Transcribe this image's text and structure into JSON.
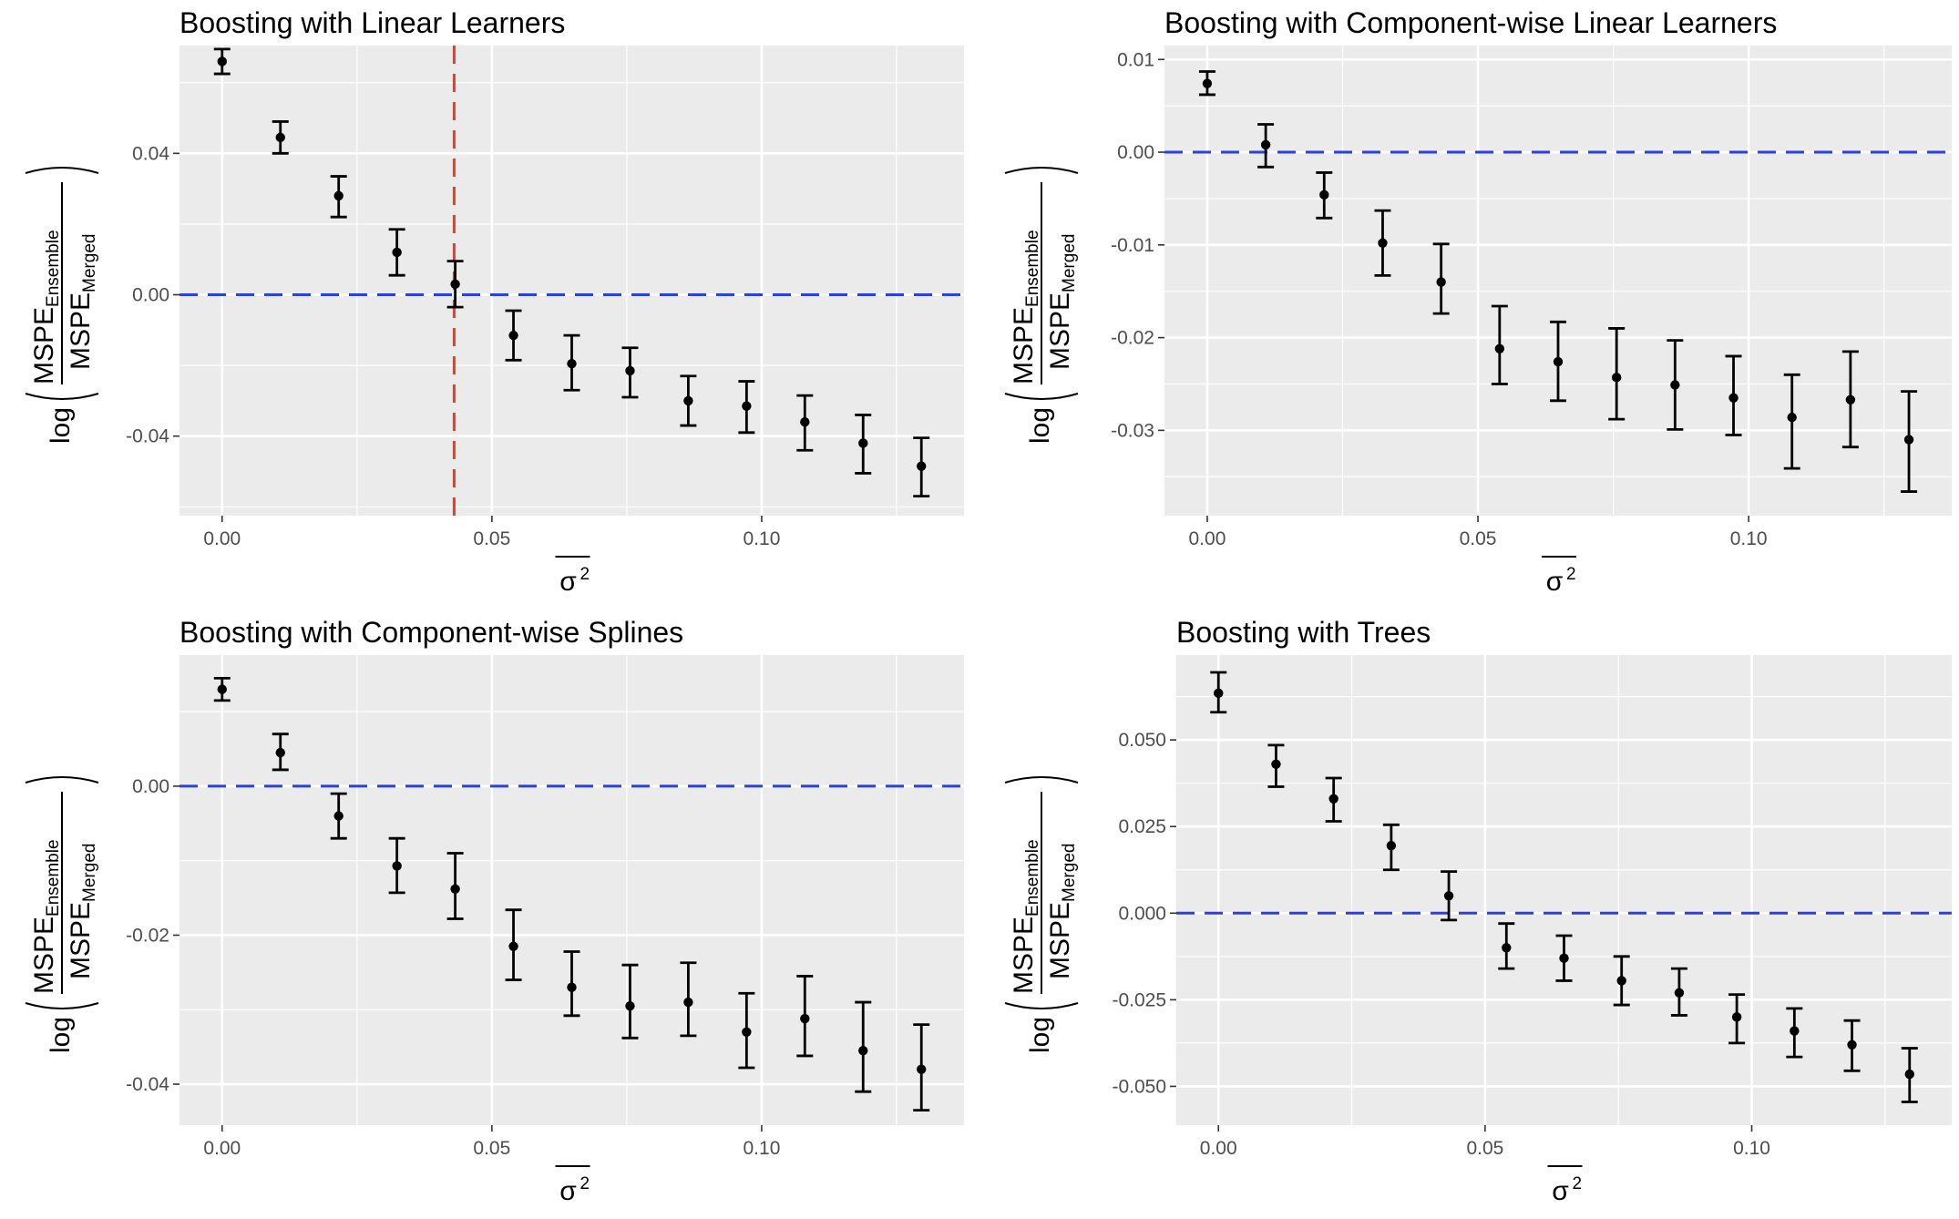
{
  "labels": {
    "y_label_log": "log",
    "y_label_num_main": "MSPE",
    "y_label_num_sub": "Ensemble",
    "y_label_den_main": "MSPE",
    "y_label_den_sub": "Merged",
    "x_label_symbol": "σ",
    "x_label_sup": "2"
  },
  "colors": {
    "panel_bg": "#ebebeb",
    "grid": "#ffffff",
    "points": "#000000",
    "hline": "#2b3fe6",
    "vline": "#ee3b22",
    "tick_text": "#4d4d4d"
  },
  "chart_data": [
    {
      "type": "scatter",
      "title": "Boosting with Linear Learners",
      "xlabel": "σ²",
      "ylabel": "log(MSPE_Ensemble / MSPE_Merged)",
      "xlim": [
        -0.0079,
        0.1375
      ],
      "ylim": [
        -0.0625,
        0.0705
      ],
      "x_ticks": [
        0.0,
        0.05,
        0.1
      ],
      "x_tick_labels": [
        "0.00",
        "0.05",
        "0.10"
      ],
      "y_ticks": [
        0.04,
        0.0,
        -0.04
      ],
      "y_tick_labels": [
        "0.04",
        "0.00",
        "-0.04"
      ],
      "hline": 0.0,
      "vline": 0.043,
      "x": [
        0.0,
        0.0108,
        0.0216,
        0.0324,
        0.0432,
        0.054,
        0.0648,
        0.0756,
        0.0864,
        0.0972,
        0.108,
        0.1188,
        0.1296
      ],
      "y": [
        0.066,
        0.0445,
        0.028,
        0.012,
        0.003,
        -0.0115,
        -0.0195,
        -0.0215,
        -0.03,
        -0.0315,
        -0.036,
        -0.042,
        -0.0485
      ],
      "lower": [
        0.0625,
        0.04,
        0.022,
        0.0055,
        -0.0035,
        -0.0185,
        -0.027,
        -0.029,
        -0.037,
        -0.039,
        -0.044,
        -0.0505,
        -0.057
      ],
      "upper": [
        0.0695,
        0.049,
        0.0335,
        0.0185,
        0.0095,
        -0.0045,
        -0.0115,
        -0.015,
        -0.023,
        -0.0245,
        -0.0285,
        -0.034,
        -0.0405
      ]
    },
    {
      "type": "scatter",
      "title": "Boosting with Component-wise Linear Learners",
      "xlabel": "σ²",
      "ylabel": "log(MSPE_Ensemble / MSPE_Merged)",
      "xlim": [
        -0.0079,
        0.1375
      ],
      "ylim": [
        -0.0392,
        0.0115
      ],
      "x_ticks": [
        0.0,
        0.05,
        0.1
      ],
      "x_tick_labels": [
        "0.00",
        "0.05",
        "0.10"
      ],
      "y_ticks": [
        0.01,
        0.0,
        -0.01,
        -0.02,
        -0.03
      ],
      "y_tick_labels": [
        "0.01",
        "0.00",
        "-0.01",
        "-0.02",
        "-0.03"
      ],
      "hline": 0.0,
      "vline": null,
      "x": [
        0.0,
        0.0108,
        0.0216,
        0.0324,
        0.0432,
        0.054,
        0.0648,
        0.0756,
        0.0864,
        0.0972,
        0.108,
        0.1188,
        0.1296
      ],
      "y": [
        0.0074,
        0.0008,
        -0.0046,
        -0.0098,
        -0.014,
        -0.0212,
        -0.0226,
        -0.0243,
        -0.0251,
        -0.0265,
        -0.0286,
        -0.0267,
        -0.031
      ],
      "lower": [
        0.0062,
        -0.0016,
        -0.0071,
        -0.0133,
        -0.0174,
        -0.025,
        -0.0268,
        -0.0288,
        -0.0299,
        -0.0305,
        -0.0341,
        -0.0318,
        -0.0366
      ],
      "upper": [
        0.0087,
        0.003,
        -0.0022,
        -0.0063,
        -0.0099,
        -0.0166,
        -0.0183,
        -0.019,
        -0.0203,
        -0.022,
        -0.024,
        -0.0215,
        -0.0258
      ]
    },
    {
      "type": "scatter",
      "title": "Boosting with Component-wise Splines",
      "xlabel": "σ²",
      "ylabel": "log(MSPE_Ensemble / MSPE_Merged)",
      "xlim": [
        -0.0079,
        0.1375
      ],
      "ylim": [
        -0.0455,
        0.0176
      ],
      "x_ticks": [
        0.0,
        0.05,
        0.1
      ],
      "x_tick_labels": [
        "0.00",
        "0.05",
        "0.10"
      ],
      "y_ticks": [
        0.0,
        -0.02,
        -0.04
      ],
      "y_tick_labels": [
        "0.00",
        "-0.02",
        "-0.04"
      ],
      "hline": 0.0,
      "vline": null,
      "x": [
        0.0,
        0.0108,
        0.0216,
        0.0324,
        0.0432,
        0.054,
        0.0648,
        0.0756,
        0.0864,
        0.0972,
        0.108,
        0.1188,
        0.1296
      ],
      "y": [
        0.013,
        0.0045,
        -0.004,
        -0.0107,
        -0.0138,
        -0.0215,
        -0.027,
        -0.0295,
        -0.029,
        -0.033,
        -0.0312,
        -0.0355,
        -0.038
      ],
      "lower": [
        0.0115,
        0.0022,
        -0.007,
        -0.0143,
        -0.0178,
        -0.026,
        -0.0308,
        -0.0338,
        -0.0335,
        -0.0378,
        -0.0362,
        -0.041,
        -0.0435
      ],
      "upper": [
        0.0145,
        0.007,
        -0.001,
        -0.007,
        -0.009,
        -0.0166,
        -0.0222,
        -0.024,
        -0.0237,
        -0.0278,
        -0.0255,
        -0.029,
        -0.032
      ]
    },
    {
      "type": "scatter",
      "title": "Boosting with Trees",
      "xlabel": "σ²",
      "ylabel": "log(MSPE_Ensemble / MSPE_Merged)",
      "xlim": [
        -0.0079,
        0.1375
      ],
      "ylim": [
        -0.0612,
        0.0745
      ],
      "x_ticks": [
        0.0,
        0.05,
        0.1
      ],
      "x_tick_labels": [
        "0.00",
        "0.05",
        "0.10"
      ],
      "y_ticks": [
        0.05,
        0.025,
        0.0,
        -0.025,
        -0.05
      ],
      "y_tick_labels": [
        "0.050",
        "0.025",
        "0.000",
        "-0.025",
        "-0.050"
      ],
      "hline": 0.0,
      "vline": null,
      "x": [
        0.0,
        0.0108,
        0.0216,
        0.0324,
        0.0432,
        0.054,
        0.0648,
        0.0756,
        0.0864,
        0.0972,
        0.108,
        0.1188,
        0.1296
      ],
      "y": [
        0.0635,
        0.043,
        0.033,
        0.0195,
        0.005,
        -0.01,
        -0.013,
        -0.0195,
        -0.023,
        -0.03,
        -0.034,
        -0.038,
        -0.0465
      ],
      "lower": [
        0.058,
        0.0365,
        0.0265,
        0.0125,
        -0.002,
        -0.016,
        -0.0195,
        -0.0265,
        -0.0295,
        -0.0375,
        -0.0415,
        -0.0455,
        -0.0545
      ],
      "upper": [
        0.0695,
        0.0485,
        0.039,
        0.0255,
        0.012,
        -0.003,
        -0.0065,
        -0.0125,
        -0.016,
        -0.0235,
        -0.0275,
        -0.031,
        -0.039
      ]
    }
  ]
}
